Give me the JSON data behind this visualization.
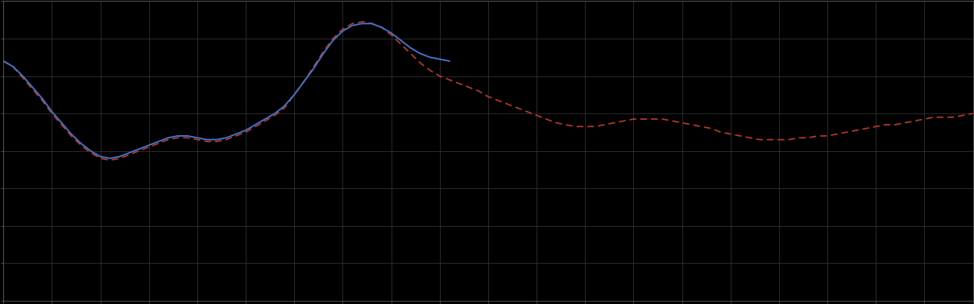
{
  "background_color": "#000000",
  "plot_bg_color": "#000000",
  "grid_color": "#3a3a3a",
  "line_blue_color": "#4472c4",
  "line_red_color": "#c0392b",
  "axis_color": "#666666",
  "figsize": [
    12.09,
    3.78
  ],
  "dpi": 100,
  "xlim": [
    0,
    100
  ],
  "ylim": [
    -60,
    100
  ],
  "n_xticks": 21,
  "n_yticks": 9,
  "blue_x": [
    0,
    1,
    2,
    3,
    4,
    5,
    6,
    7,
    8,
    9,
    10,
    11,
    12,
    13,
    14,
    15,
    16,
    17,
    18,
    19,
    20,
    21,
    22,
    23,
    24,
    25,
    26,
    27,
    28,
    29,
    30,
    31,
    32,
    33,
    34,
    35,
    36,
    37,
    38,
    39,
    40,
    41,
    42,
    43,
    44,
    45,
    46
  ],
  "blue_y": [
    68,
    65,
    60,
    54,
    48,
    41,
    35,
    29,
    24,
    20,
    17,
    16,
    17,
    19,
    21,
    23,
    25,
    27,
    28,
    28,
    27,
    26,
    26,
    27,
    29,
    31,
    34,
    37,
    40,
    44,
    50,
    57,
    64,
    72,
    79,
    84,
    87,
    88,
    88,
    86,
    83,
    79,
    75,
    72,
    70,
    69,
    68
  ],
  "red_x": [
    0,
    1,
    2,
    3,
    4,
    5,
    6,
    7,
    8,
    9,
    10,
    11,
    12,
    13,
    14,
    15,
    16,
    17,
    18,
    19,
    20,
    21,
    22,
    23,
    24,
    25,
    26,
    27,
    28,
    29,
    30,
    31,
    32,
    33,
    34,
    35,
    36,
    37,
    38,
    39,
    40,
    41,
    42,
    43,
    44,
    45,
    46,
    47,
    48,
    49,
    50,
    51,
    52,
    53,
    54,
    55,
    56,
    57,
    58,
    59,
    60,
    61,
    62,
    63,
    64,
    65,
    66,
    67,
    68,
    69,
    70,
    71,
    72,
    73,
    74,
    75,
    76,
    77,
    78,
    79,
    80,
    81,
    82,
    83,
    84,
    85,
    86,
    87,
    88,
    89,
    90,
    91,
    92,
    93,
    94,
    95,
    96,
    97,
    98,
    99,
    100
  ],
  "red_y": [
    68,
    65,
    59,
    53,
    47,
    40,
    34,
    28,
    23,
    19,
    16,
    15,
    16,
    18,
    20,
    22,
    24,
    26,
    27,
    27,
    26,
    25,
    25,
    26,
    28,
    30,
    33,
    36,
    39,
    43,
    50,
    57,
    65,
    73,
    80,
    85,
    88,
    89,
    88,
    86,
    82,
    77,
    72,
    67,
    63,
    60,
    58,
    56,
    54,
    52,
    49,
    47,
    45,
    43,
    41,
    39,
    37,
    35,
    34,
    33,
    33,
    33,
    34,
    35,
    36,
    37,
    37,
    37,
    37,
    36,
    35,
    34,
    33,
    32,
    30,
    29,
    28,
    27,
    26,
    26,
    26,
    26,
    27,
    27,
    28,
    28,
    29,
    30,
    31,
    32,
    33,
    34,
    34,
    35,
    36,
    37,
    38,
    38,
    38,
    39,
    40
  ]
}
